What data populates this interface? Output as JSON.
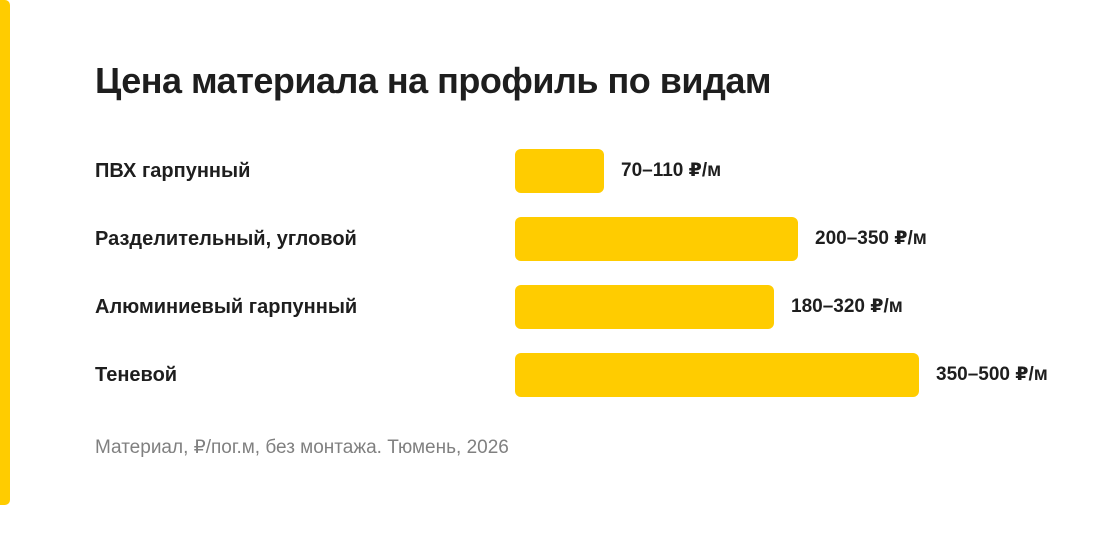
{
  "colors": {
    "accent": "#FFCC00",
    "text": "#1E1E1E",
    "muted": "#808080",
    "background": "#FFFFFF"
  },
  "title": "Цена материала на профиль по видам",
  "footnote": "Материал, ₽/пог.м, без монтажа. Тюмень, 2026",
  "chart_data": {
    "type": "bar",
    "orientation": "horizontal",
    "title": "Цена материала на профиль по видам",
    "categories": [
      "ПВХ гарпунный",
      "Разделительный, угловой",
      "Алюминиевый гарпунный",
      "Теневой"
    ],
    "series": [
      {
        "values": [
          110,
          350,
          320,
          500
        ],
        "ranges": [
          [
            70,
            110
          ],
          [
            200,
            350
          ],
          [
            180,
            320
          ],
          [
            350,
            500
          ]
        ],
        "value_labels": [
          "70–110 ₽/м",
          "200–350 ₽/м",
          "180–320 ₽/м",
          "350–500 ₽/м"
        ]
      }
    ],
    "grid": false,
    "legend": "none",
    "note": "Материал, ₽/пог.м, без монтажа. Тюмень, 2026"
  }
}
